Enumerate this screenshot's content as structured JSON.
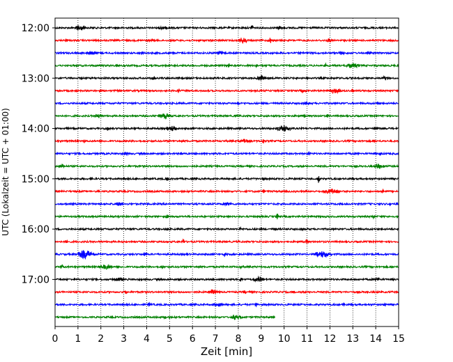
{
  "chart_data": {
    "type": "line",
    "title": "",
    "xlabel": "Zeit  [min]",
    "ylabel": "UTC (Lokalzeit = UTC + 01:00)",
    "xlim": [
      0,
      15
    ],
    "x_ticks": [
      "0",
      "1",
      "2",
      "3",
      "4",
      "5",
      "6",
      "7",
      "8",
      "9",
      "10",
      "11",
      "12",
      "13",
      "14",
      "15"
    ],
    "y_ticks": [
      "12:00",
      "13:00",
      "14:00",
      "15:00",
      "16:00",
      "17:00"
    ],
    "grid": "vertical-dotted",
    "trace_interval_minutes": 15,
    "colors": [
      "#000000",
      "#ff0000",
      "#0000ff",
      "#008000"
    ],
    "traces": [
      {
        "start": "12:00",
        "color": "#000000",
        "end_min": 15,
        "events": [
          [
            1.1,
            5,
            0.5
          ],
          [
            4.7,
            3,
            0.4
          ],
          [
            8.6,
            4,
            0.15
          ],
          [
            9.8,
            3,
            0.3
          ]
        ]
      },
      {
        "start": "12:15",
        "color": "#ff0000",
        "end_min": 15,
        "events": [
          [
            0.5,
            3,
            0.1
          ],
          [
            4.3,
            3,
            0.1
          ],
          [
            8.2,
            5,
            0.4
          ],
          [
            9.4,
            5,
            0.1
          ],
          [
            12.0,
            3,
            0.3
          ]
        ]
      },
      {
        "start": "12:30",
        "color": "#0000ff",
        "end_min": 15,
        "events": [
          [
            1.6,
            3,
            0.5
          ],
          [
            3.8,
            3,
            0.1
          ],
          [
            7.2,
            3,
            0.4
          ],
          [
            12.5,
            3,
            0.3
          ]
        ]
      },
      {
        "start": "12:45",
        "color": "#008000",
        "end_min": 15,
        "events": [
          [
            2.7,
            3,
            0.1
          ],
          [
            7.6,
            3,
            0.1
          ],
          [
            8.8,
            3,
            0.1
          ],
          [
            11.8,
            4,
            0.1
          ],
          [
            13.0,
            4,
            0.6
          ]
        ]
      },
      {
        "start": "13:00",
        "color": "#000000",
        "end_min": 15,
        "events": [
          [
            4.3,
            4,
            0.1
          ],
          [
            9.0,
            4,
            0.4
          ],
          [
            14.4,
            5,
            0.1
          ]
        ]
      },
      {
        "start": "13:15",
        "color": "#ff0000",
        "end_min": 15,
        "events": [
          [
            5.4,
            4,
            0.1
          ],
          [
            10.8,
            4,
            0.1
          ],
          [
            12.2,
            4,
            0.6
          ],
          [
            13.0,
            4,
            0.1
          ]
        ]
      },
      {
        "start": "13:30",
        "color": "#0000ff",
        "end_min": 15,
        "events": [
          [
            8.0,
            3,
            0.1
          ],
          [
            11.0,
            3,
            0.3
          ],
          [
            14.1,
            3,
            0.1
          ]
        ]
      },
      {
        "start": "13:45",
        "color": "#008000",
        "end_min": 15,
        "events": [
          [
            1.9,
            3,
            0.3
          ],
          [
            4.8,
            4,
            0.6
          ],
          [
            7.9,
            3,
            0.1
          ],
          [
            10.9,
            3,
            0.1
          ],
          [
            11.9,
            3,
            0.1
          ]
        ]
      },
      {
        "start": "14:00",
        "color": "#000000",
        "end_min": 15,
        "events": [
          [
            2.3,
            3,
            0.1
          ],
          [
            3.5,
            3,
            0.1
          ],
          [
            5.1,
            4,
            0.5
          ],
          [
            8.1,
            3,
            0.1
          ],
          [
            10.0,
            5,
            0.6
          ],
          [
            14.0,
            3,
            0.2
          ]
        ]
      },
      {
        "start": "14:15",
        "color": "#ff0000",
        "end_min": 15,
        "events": [
          [
            1.3,
            3,
            0.1
          ],
          [
            8.3,
            3,
            0.6
          ],
          [
            9.1,
            4,
            0.1
          ],
          [
            13.9,
            3,
            0.1
          ]
        ]
      },
      {
        "start": "14:30",
        "color": "#0000ff",
        "end_min": 15,
        "events": [
          [
            3.1,
            3,
            0.1
          ],
          [
            5.5,
            3,
            0.1
          ],
          [
            11.1,
            3,
            0.1
          ],
          [
            14.2,
            3,
            0.1
          ]
        ]
      },
      {
        "start": "14:45",
        "color": "#008000",
        "end_min": 15,
        "events": [
          [
            0.3,
            3,
            0.3
          ],
          [
            14.2,
            4,
            0.5
          ]
        ]
      },
      {
        "start": "15:00",
        "color": "#000000",
        "end_min": 15,
        "events": [
          [
            1.6,
            3,
            0.1
          ],
          [
            4.9,
            3,
            0.1
          ],
          [
            9.1,
            3,
            0.1
          ],
          [
            11.5,
            6,
            0.1
          ]
        ]
      },
      {
        "start": "15:15",
        "color": "#ff0000",
        "end_min": 15,
        "events": [
          [
            1.9,
            3,
            0.1
          ],
          [
            9.1,
            3,
            0.1
          ],
          [
            12.1,
            4,
            0.8
          ],
          [
            14.3,
            3,
            0.1
          ]
        ]
      },
      {
        "start": "15:30",
        "color": "#0000ff",
        "end_min": 15,
        "events": [
          [
            2.8,
            3,
            0.4
          ],
          [
            7.5,
            3,
            0.4
          ],
          [
            14.6,
            3,
            0.1
          ]
        ]
      },
      {
        "start": "15:45",
        "color": "#008000",
        "end_min": 15,
        "events": [
          [
            4.9,
            3,
            0.1
          ],
          [
            9.7,
            5,
            0.1
          ],
          [
            13.9,
            4,
            0.1
          ]
        ]
      },
      {
        "start": "16:00",
        "color": "#000000",
        "end_min": 15,
        "events": [
          [
            4.9,
            3,
            0.1
          ],
          [
            8.1,
            3,
            0.1
          ],
          [
            9.6,
            3,
            0.1
          ],
          [
            10.8,
            3,
            0.1
          ]
        ]
      },
      {
        "start": "16:15",
        "color": "#ff0000",
        "end_min": 15,
        "events": [
          [
            0.5,
            3,
            0.1
          ],
          [
            5.6,
            4,
            0.1
          ],
          [
            11.0,
            4,
            0.1
          ]
        ]
      },
      {
        "start": "16:30",
        "color": "#0000ff",
        "end_min": 15,
        "events": [
          [
            1.3,
            7,
            0.6
          ],
          [
            3.9,
            3,
            0.3
          ],
          [
            7.4,
            3,
            0.1
          ],
          [
            11.7,
            5,
            0.8
          ]
        ]
      },
      {
        "start": "16:45",
        "color": "#008000",
        "end_min": 15,
        "events": [
          [
            0.3,
            4,
            0.1
          ],
          [
            2.2,
            4,
            0.6
          ],
          [
            4.7,
            3,
            0.1
          ],
          [
            8.1,
            3,
            0.1
          ]
        ]
      },
      {
        "start": "17:00",
        "color": "#000000",
        "end_min": 15,
        "events": [
          [
            2.8,
            3,
            0.4
          ],
          [
            8.1,
            3,
            0.1
          ],
          [
            8.9,
            4,
            0.5
          ],
          [
            14.1,
            4,
            0.1
          ]
        ]
      },
      {
        "start": "17:15",
        "color": "#ff0000",
        "end_min": 15,
        "events": [
          [
            3.1,
            3,
            0.1
          ],
          [
            6.9,
            4,
            0.4
          ],
          [
            8.3,
            3,
            0.1
          ],
          [
            10.4,
            4,
            0.1
          ],
          [
            13.6,
            3,
            0.1
          ]
        ]
      },
      {
        "start": "17:30",
        "color": "#0000ff",
        "end_min": 15,
        "events": [
          [
            4.1,
            4,
            0.1
          ],
          [
            7.1,
            3,
            0.5
          ],
          [
            8.8,
            3,
            0.1
          ],
          [
            12.6,
            3,
            0.1
          ],
          [
            14.4,
            3,
            0.1
          ]
        ]
      },
      {
        "start": "17:45",
        "color": "#008000",
        "end_min": 9.6,
        "events": [
          [
            4.8,
            3,
            0.1
          ],
          [
            7.9,
            4,
            0.5
          ]
        ]
      }
    ]
  }
}
